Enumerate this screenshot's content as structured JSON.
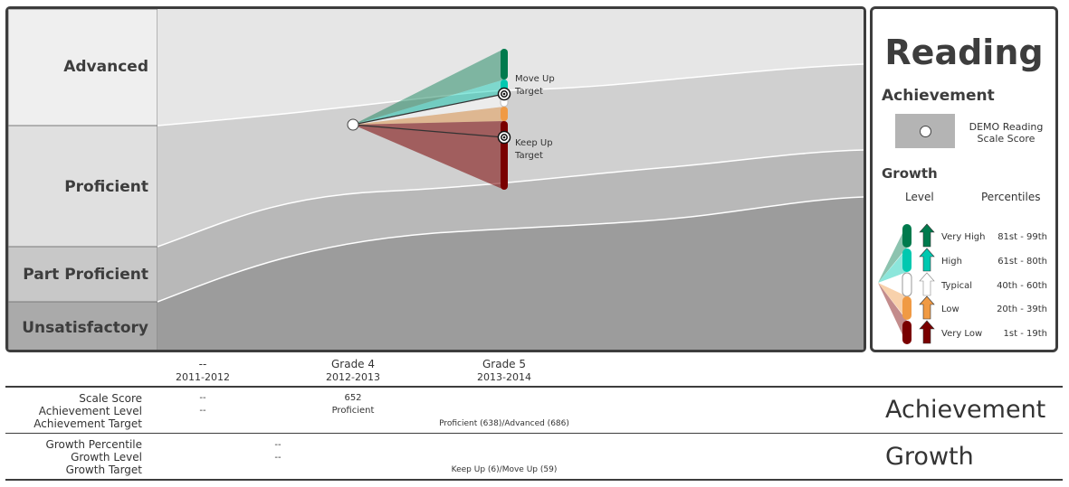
{
  "chart_data": {
    "type": "area",
    "title": "Reading",
    "achievement_levels": [
      "Advanced",
      "Proficient",
      "Part Proficient",
      "Unsatisfactory"
    ],
    "x": [
      {
        "grade": "--",
        "year": "2011-2012"
      },
      {
        "grade": "Grade 4",
        "year": "2012-2013"
      },
      {
        "grade": "Grade 5",
        "year": "2013-2014"
      }
    ],
    "scale_score_points": [
      {
        "x": "Grade 4",
        "value": 652,
        "level": "Proficient"
      }
    ],
    "projection_labels": {
      "move_up": "Move Up",
      "keep_up": "Keep Up",
      "target": "Target"
    },
    "growth_colors": {
      "very_high": "#007a4d",
      "high": "#00c8b0",
      "typical": "#ffffff",
      "low": "#f09a44",
      "very_low": "#7a0000"
    },
    "band_colors": {
      "advanced": "#e6e6e6",
      "proficient": "#d0d0d0",
      "part_proficient": "#b8b8b8",
      "unsatisfactory": "#9c9c9c"
    },
    "grid": false
  },
  "legend": {
    "subject": "Reading",
    "achievement_heading": "Achievement",
    "score_label": "DEMO Reading Scale Score",
    "growth_heading": "Growth",
    "level_col": "Level",
    "percentile_col": "Percentiles",
    "rows": [
      {
        "level": "Very High",
        "range": "81st - 99th",
        "color": "#007a4d"
      },
      {
        "level": "High",
        "range": "61st - 80th",
        "color": "#00c8b0"
      },
      {
        "level": "Typical",
        "range": "40th - 60th",
        "color": "#ffffff"
      },
      {
        "level": "Low",
        "range": "20th - 39th",
        "color": "#f09a44"
      },
      {
        "level": "Very Low",
        "range": "1st - 19th",
        "color": "#7a0000"
      }
    ]
  },
  "table": {
    "achievement_section": "Achievement",
    "growth_section": "Growth",
    "labels": {
      "scale_score": "Scale Score",
      "achievement_level": "Achievement Level",
      "achievement_target": "Achievement Target",
      "growth_percentile": "Growth Percentile",
      "growth_level": "Growth Level",
      "growth_target": "Growth Target"
    },
    "scale_score": {
      "y2011": "--",
      "y2012": "652"
    },
    "achievement_level": {
      "y2011": "--",
      "y2012": "Proficient"
    },
    "achievement_target": {
      "y2013": "Proficient (638)/Advanced (686)"
    },
    "growth_percentile": {
      "y2012": "--"
    },
    "growth_level": {
      "y2012": "--"
    },
    "growth_target": {
      "y2013": "Keep Up (6)/Move Up (59)"
    }
  }
}
